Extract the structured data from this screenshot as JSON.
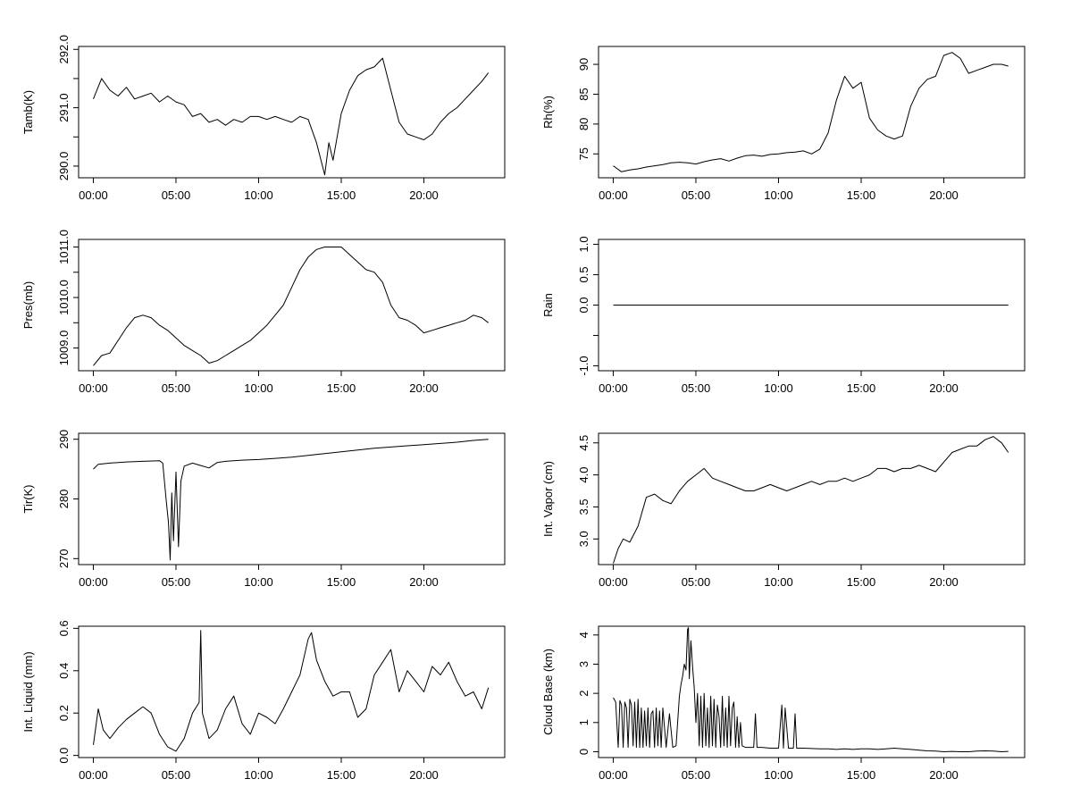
{
  "chart_data": [
    {
      "type": "line",
      "ylabel": "Tamb(K)",
      "x_unit": "hours",
      "xlim": [
        0,
        24
      ],
      "ylim": [
        289.8,
        292.05
      ],
      "yticks": [
        290.0,
        290.5,
        291.0,
        291.5,
        292.0
      ],
      "ytick_labels": [
        "290.0",
        "",
        "291.0",
        "",
        "292.0"
      ],
      "xticks": [
        0,
        5,
        10,
        15,
        20
      ],
      "xtick_labels": [
        "00:00",
        "05:00",
        "10:00",
        "15:00",
        "20:00"
      ],
      "x": [
        0,
        0.5,
        1,
        1.5,
        2,
        2.5,
        3,
        3.5,
        4,
        4.5,
        5,
        5.5,
        6,
        6.5,
        7,
        7.5,
        8,
        8.5,
        9,
        9.5,
        10,
        10.5,
        11,
        11.5,
        12,
        12.5,
        13,
        13.5,
        14,
        14.25,
        14.5,
        15,
        15.5,
        16,
        16.5,
        17,
        17.5,
        18,
        18.5,
        19,
        19.5,
        20,
        20.5,
        21,
        21.5,
        22,
        22.5,
        23,
        23.5,
        23.9
      ],
      "y": [
        291.15,
        291.5,
        291.3,
        291.2,
        291.35,
        291.15,
        291.2,
        291.25,
        291.1,
        291.2,
        291.1,
        291.05,
        290.85,
        290.9,
        290.75,
        290.8,
        290.7,
        290.8,
        290.75,
        290.85,
        290.85,
        290.8,
        290.85,
        290.8,
        290.75,
        290.85,
        290.8,
        290.4,
        289.85,
        290.4,
        290.1,
        290.9,
        291.3,
        291.55,
        291.65,
        291.7,
        291.85,
        291.3,
        290.75,
        290.55,
        290.5,
        290.45,
        290.55,
        290.75,
        290.9,
        291.0,
        291.15,
        291.3,
        291.45,
        291.6
      ]
    },
    {
      "type": "line",
      "ylabel": "Rh(%)",
      "x_unit": "hours",
      "xlim": [
        0,
        24
      ],
      "ylim": [
        71,
        93
      ],
      "yticks": [
        75,
        80,
        85,
        90
      ],
      "ytick_labels": [
        "75",
        "80",
        "85",
        "90"
      ],
      "xticks": [
        0,
        5,
        10,
        15,
        20
      ],
      "xtick_labels": [
        "00:00",
        "05:00",
        "10:00",
        "15:00",
        "20:00"
      ],
      "x": [
        0,
        0.5,
        1,
        1.5,
        2,
        2.5,
        3,
        3.5,
        4,
        4.5,
        5,
        5.5,
        6,
        6.5,
        7,
        7.5,
        8,
        8.5,
        9,
        9.5,
        10,
        10.5,
        11,
        11.5,
        12,
        12.5,
        13,
        13.5,
        14,
        14.5,
        15,
        15.5,
        16,
        16.5,
        17,
        17.5,
        18,
        18.5,
        19,
        19.5,
        20,
        20.5,
        21,
        21.5,
        22,
        22.5,
        23,
        23.5,
        23.9
      ],
      "y": [
        73,
        72,
        72.3,
        72.5,
        72.8,
        73,
        73.2,
        73.5,
        73.6,
        73.5,
        73.3,
        73.7,
        74,
        74.2,
        73.8,
        74.3,
        74.7,
        74.8,
        74.6,
        74.9,
        75,
        75.2,
        75.3,
        75.5,
        75,
        75.8,
        78.5,
        84,
        88,
        86,
        87,
        81,
        79,
        78,
        77.5,
        78,
        83,
        86,
        87.5,
        88,
        91.5,
        92,
        91,
        88.5,
        89,
        89.5,
        90,
        90,
        89.7
      ]
    },
    {
      "type": "line",
      "ylabel": "Pres(mb)",
      "x_unit": "hours",
      "xlim": [
        0,
        24
      ],
      "ylim": [
        1008.55,
        1011.15
      ],
      "yticks": [
        1009.0,
        1009.5,
        1010.0,
        1010.5,
        1011.0
      ],
      "ytick_labels": [
        "1009.0",
        "",
        "1010.0",
        "",
        "1011.0"
      ],
      "xticks": [
        0,
        5,
        10,
        15,
        20
      ],
      "xtick_labels": [
        "00:00",
        "05:00",
        "10:00",
        "15:00",
        "20:00"
      ],
      "x": [
        0,
        0.5,
        1,
        1.5,
        2,
        2.5,
        3,
        3.5,
        4,
        4.5,
        5,
        5.5,
        6,
        6.5,
        7,
        7.5,
        8,
        8.5,
        9,
        9.5,
        10,
        10.5,
        11,
        11.5,
        12,
        12.5,
        13,
        13.5,
        14,
        14.5,
        15,
        15.5,
        16,
        16.5,
        17,
        17.5,
        18,
        18.5,
        19,
        19.5,
        20,
        20.5,
        21,
        21.5,
        22,
        22.5,
        23,
        23.5,
        23.9
      ],
      "y": [
        1008.65,
        1008.85,
        1008.9,
        1009.15,
        1009.4,
        1009.6,
        1009.65,
        1009.6,
        1009.45,
        1009.35,
        1009.2,
        1009.05,
        1008.95,
        1008.85,
        1008.7,
        1008.75,
        1008.85,
        1008.95,
        1009.05,
        1009.15,
        1009.3,
        1009.45,
        1009.65,
        1009.85,
        1010.2,
        1010.55,
        1010.8,
        1010.95,
        1011.0,
        1011.0,
        1011.0,
        1010.85,
        1010.7,
        1010.55,
        1010.5,
        1010.3,
        1009.85,
        1009.6,
        1009.55,
        1009.45,
        1009.3,
        1009.35,
        1009.4,
        1009.45,
        1009.5,
        1009.55,
        1009.65,
        1009.6,
        1009.5
      ]
    },
    {
      "type": "line",
      "ylabel": "Rain",
      "x_unit": "hours",
      "xlim": [
        0,
        24
      ],
      "ylim": [
        -1.08,
        1.08
      ],
      "yticks": [
        -1.0,
        -0.5,
        0.0,
        0.5,
        1.0
      ],
      "ytick_labels": [
        "-1.0",
        "",
        "0.0",
        "0.5",
        "1.0"
      ],
      "xticks": [
        0,
        5,
        10,
        15,
        20
      ],
      "xtick_labels": [
        "00:00",
        "05:00",
        "10:00",
        "15:00",
        "20:00"
      ],
      "x": [
        0,
        23.9
      ],
      "y": [
        0.0,
        0.0
      ]
    },
    {
      "type": "line",
      "ylabel": "Tir(K)",
      "x_unit": "hours",
      "xlim": [
        0,
        24
      ],
      "ylim": [
        269,
        291
      ],
      "yticks": [
        270,
        280,
        290
      ],
      "ytick_labels": [
        "270",
        "280",
        "290"
      ],
      "xticks": [
        0,
        5,
        10,
        15,
        20
      ],
      "xtick_labels": [
        "00:00",
        "05:00",
        "10:00",
        "15:00",
        "20:00"
      ],
      "x": [
        0,
        0.3,
        1,
        2,
        3,
        4,
        4.2,
        4.4,
        4.55,
        4.65,
        4.75,
        4.85,
        5.0,
        5.15,
        5.3,
        5.5,
        6,
        6.5,
        7,
        7.5,
        8,
        9,
        10,
        11,
        12,
        13,
        14,
        15,
        16,
        17,
        18,
        19,
        20,
        21,
        22,
        23,
        23.9
      ],
      "y": [
        285,
        285.8,
        286,
        286.2,
        286.3,
        286.4,
        286.0,
        280,
        276,
        269.8,
        281,
        273,
        284.5,
        272,
        283,
        285.5,
        286,
        285.6,
        285.2,
        286.1,
        286.3,
        286.5,
        286.6,
        286.8,
        287,
        287.3,
        287.6,
        287.9,
        288.2,
        288.5,
        288.7,
        288.9,
        289.1,
        289.3,
        289.5,
        289.8,
        290
      ]
    },
    {
      "type": "line",
      "ylabel": "Int. Vapor (cm)",
      "x_unit": "hours",
      "xlim": [
        0,
        24
      ],
      "ylim": [
        2.6,
        4.65
      ],
      "yticks": [
        3.0,
        3.5,
        4.0,
        4.5
      ],
      "ytick_labels": [
        "3.0",
        "3.5",
        "4.0",
        "4.5"
      ],
      "xticks": [
        0,
        5,
        10,
        15,
        20
      ],
      "xtick_labels": [
        "00:00",
        "05:00",
        "10:00",
        "15:00",
        "20:00"
      ],
      "x": [
        0,
        0.3,
        0.6,
        1,
        1.5,
        2,
        2.5,
        3,
        3.5,
        4,
        4.5,
        5,
        5.5,
        6,
        6.5,
        7,
        7.5,
        8,
        8.5,
        9,
        9.5,
        10,
        10.5,
        11,
        11.5,
        12,
        12.5,
        13,
        13.5,
        14,
        14.5,
        15,
        15.5,
        16,
        16.5,
        17,
        17.5,
        18,
        18.5,
        19,
        19.5,
        20,
        20.5,
        21,
        21.5,
        22,
        22.5,
        23,
        23.5,
        23.9
      ],
      "y": [
        2.62,
        2.85,
        3.0,
        2.95,
        3.2,
        3.65,
        3.7,
        3.6,
        3.55,
        3.75,
        3.9,
        4.0,
        4.1,
        3.95,
        3.9,
        3.85,
        3.8,
        3.75,
        3.75,
        3.8,
        3.85,
        3.8,
        3.75,
        3.8,
        3.85,
        3.9,
        3.85,
        3.9,
        3.9,
        3.95,
        3.9,
        3.95,
        4.0,
        4.1,
        4.1,
        4.05,
        4.1,
        4.1,
        4.15,
        4.1,
        4.05,
        4.2,
        4.35,
        4.4,
        4.45,
        4.45,
        4.55,
        4.6,
        4.5,
        4.35
      ]
    },
    {
      "type": "line",
      "ylabel": "Int. Liquid (mm)",
      "x_unit": "hours",
      "xlim": [
        0,
        24
      ],
      "ylim": [
        -0.01,
        0.61
      ],
      "yticks": [
        0.0,
        0.2,
        0.4,
        0.6
      ],
      "ytick_labels": [
        "0.0",
        "0.2",
        "0.4",
        "0.6"
      ],
      "xticks": [
        0,
        5,
        10,
        15,
        20
      ],
      "xtick_labels": [
        "00:00",
        "05:00",
        "10:00",
        "15:00",
        "20:00"
      ],
      "x": [
        0,
        0.3,
        0.6,
        1,
        1.5,
        2,
        2.5,
        3,
        3.5,
        4,
        4.5,
        5,
        5.5,
        6,
        6.4,
        6.5,
        6.6,
        7,
        7.5,
        8,
        8.5,
        9,
        9.5,
        10,
        10.5,
        11,
        11.5,
        12,
        12.5,
        13,
        13.2,
        13.5,
        14,
        14.5,
        15,
        15.5,
        16,
        16.5,
        17,
        17.5,
        18,
        18.5,
        19,
        19.5,
        20,
        20.5,
        21,
        21.5,
        22,
        22.5,
        23,
        23.5,
        23.9
      ],
      "y": [
        0.05,
        0.22,
        0.12,
        0.08,
        0.13,
        0.17,
        0.2,
        0.23,
        0.2,
        0.1,
        0.04,
        0.02,
        0.08,
        0.2,
        0.25,
        0.59,
        0.2,
        0.08,
        0.12,
        0.22,
        0.28,
        0.15,
        0.1,
        0.2,
        0.18,
        0.15,
        0.22,
        0.3,
        0.38,
        0.55,
        0.58,
        0.45,
        0.35,
        0.28,
        0.3,
        0.3,
        0.18,
        0.22,
        0.38,
        0.44,
        0.5,
        0.3,
        0.4,
        0.35,
        0.3,
        0.42,
        0.38,
        0.44,
        0.35,
        0.28,
        0.3,
        0.22,
        0.32
      ]
    },
    {
      "type": "line",
      "ylabel": "Cloud Base (km)",
      "x_unit": "hours",
      "xlim": [
        0,
        24
      ],
      "ylim": [
        -0.2,
        4.3
      ],
      "yticks": [
        0,
        1,
        2,
        3,
        4
      ],
      "ytick_labels": [
        "0",
        "1",
        "2",
        "3",
        "4"
      ],
      "xticks": [
        0,
        5,
        10,
        15,
        20
      ],
      "xtick_labels": [
        "00:00",
        "05:00",
        "10:00",
        "15:00",
        "20:00"
      ],
      "x": [
        0,
        0.15,
        0.3,
        0.4,
        0.5,
        0.6,
        0.7,
        0.8,
        0.9,
        1.0,
        1.1,
        1.2,
        1.3,
        1.4,
        1.5,
        1.6,
        1.7,
        1.8,
        1.9,
        2.0,
        2.1,
        2.2,
        2.3,
        2.4,
        2.5,
        2.6,
        2.7,
        2.8,
        2.9,
        3.0,
        3.2,
        3.4,
        3.6,
        3.8,
        4.0,
        4.1,
        4.2,
        4.3,
        4.4,
        4.5,
        4.55,
        4.6,
        4.7,
        4.8,
        4.9,
        5.0,
        5.1,
        5.2,
        5.3,
        5.4,
        5.5,
        5.6,
        5.7,
        5.8,
        5.9,
        6.0,
        6.1,
        6.2,
        6.3,
        6.4,
        6.5,
        6.6,
        6.7,
        6.8,
        6.9,
        7.0,
        7.1,
        7.2,
        7.3,
        7.4,
        7.5,
        7.6,
        7.7,
        7.8,
        8.0,
        8.5,
        8.6,
        8.7,
        9.0,
        9.5,
        10.0,
        10.2,
        10.3,
        10.4,
        10.6,
        10.9,
        11.0,
        11.1,
        11.5,
        12,
        12.5,
        13,
        13.5,
        14,
        14.5,
        15,
        15.5,
        16,
        16.5,
        17,
        17.5,
        18,
        18.5,
        19,
        19.5,
        20,
        20.5,
        21,
        21.5,
        22,
        22.5,
        23,
        23.5,
        23.9
      ],
      "y": [
        1.85,
        1.7,
        0.15,
        1.75,
        1.6,
        0.15,
        1.7,
        1.5,
        0.15,
        1.8,
        1.6,
        0.2,
        1.7,
        0.15,
        1.8,
        0.15,
        1.5,
        0.15,
        1.4,
        0.2,
        1.5,
        0.15,
        1.3,
        1.4,
        0.15,
        1.5,
        0.2,
        1.4,
        0.15,
        1.5,
        0.15,
        1.3,
        0.15,
        0.2,
        1.9,
        2.3,
        2.6,
        3.0,
        2.8,
        4.2,
        4.25,
        2.5,
        3.8,
        2.9,
        2.2,
        1.0,
        2.0,
        0.2,
        1.9,
        0.15,
        2.0,
        0.2,
        1.5,
        0.15,
        1.9,
        0.2,
        1.8,
        0.15,
        1.6,
        1.2,
        0.15,
        1.9,
        0.2,
        1.5,
        0.15,
        1.9,
        0.2,
        1.5,
        1.7,
        0.15,
        1.2,
        0.15,
        1.0,
        0.2,
        0.15,
        0.15,
        1.3,
        0.15,
        0.15,
        0.12,
        0.12,
        1.6,
        0.12,
        1.5,
        0.12,
        0.12,
        1.3,
        0.12,
        0.12,
        0.11,
        0.1,
        0.1,
        0.08,
        0.1,
        0.08,
        0.1,
        0.1,
        0.08,
        0.1,
        0.12,
        0.1,
        0.08,
        0.05,
        0.03,
        0.02,
        0.0,
        0.01,
        0.0,
        0.0,
        0.02,
        0.03,
        0.02,
        0.0,
        0.01
      ]
    }
  ]
}
